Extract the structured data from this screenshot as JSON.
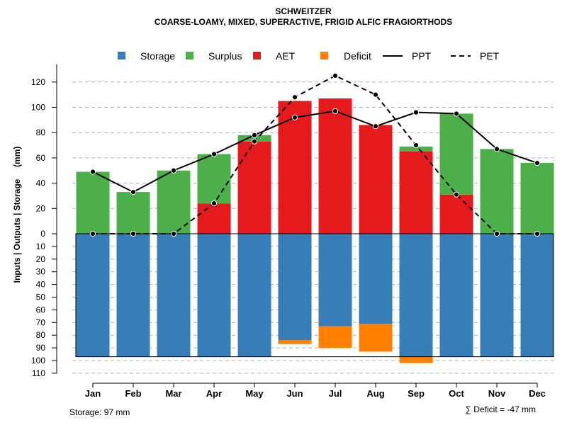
{
  "chart_data": {
    "type": "bar",
    "title": "SCHWEITZER",
    "subtitle": "COARSE-LOAMY, MIXED, SUPERACTIVE, FRIGID ALFIC FRAGIORTHODS",
    "ylabel": "Inputs | Outputs | Storage     (mm)",
    "categories": [
      "Jan",
      "Feb",
      "Mar",
      "Apr",
      "May",
      "Jun",
      "Jul",
      "Aug",
      "Sep",
      "Oct",
      "Nov",
      "Dec"
    ],
    "upper_axis": {
      "ylim": [
        0,
        130
      ],
      "ticks": [
        0,
        20,
        40,
        60,
        80,
        100,
        120
      ]
    },
    "lower_axis": {
      "ylim": [
        0,
        110
      ],
      "ticks": [
        0,
        10,
        20,
        30,
        40,
        50,
        60,
        70,
        80,
        90,
        100,
        110
      ]
    },
    "legend": [
      {
        "name": "Storage",
        "kind": "box",
        "color": "#377EB8"
      },
      {
        "name": "Surplus",
        "kind": "box",
        "color": "#4DAF4A"
      },
      {
        "name": "AET",
        "kind": "box",
        "color": "#E41A1C"
      },
      {
        "name": "Deficit",
        "kind": "box",
        "color": "#FF7F00"
      },
      {
        "name": "PPT",
        "kind": "line",
        "dash": "solid"
      },
      {
        "name": "PET",
        "kind": "line",
        "dash": "dashed"
      }
    ],
    "series": [
      {
        "name": "AET",
        "color": "#E41A1C",
        "values": [
          0,
          0,
          0,
          24,
          73,
          105,
          107,
          86,
          65,
          31,
          0,
          0
        ]
      },
      {
        "name": "Surplus",
        "color": "#4DAF4A",
        "values": [
          49,
          33,
          50,
          39,
          5,
          0,
          0,
          0,
          4,
          64,
          67,
          56
        ]
      },
      {
        "name": "Storage",
        "color": "#377EB8",
        "values": [
          97,
          97,
          97,
          97,
          97,
          84,
          73,
          71,
          97,
          97,
          97,
          97
        ]
      },
      {
        "name": "Deficit",
        "color": "#FF7F00",
        "values": [
          0,
          0,
          0,
          0,
          0,
          3,
          17,
          22,
          5,
          0,
          0,
          0
        ]
      },
      {
        "name": "PPT",
        "values": [
          49,
          33,
          50,
          63,
          78,
          92,
          97,
          85,
          96,
          95,
          67,
          56
        ]
      },
      {
        "name": "PET",
        "values": [
          0,
          0,
          0,
          24,
          73,
          108,
          125,
          110,
          70,
          31,
          0,
          0
        ]
      }
    ],
    "storage_capacity": 97,
    "footer_left": "Storage: 97 mm",
    "footer_right": "∑ Deficit = -47 mm"
  }
}
